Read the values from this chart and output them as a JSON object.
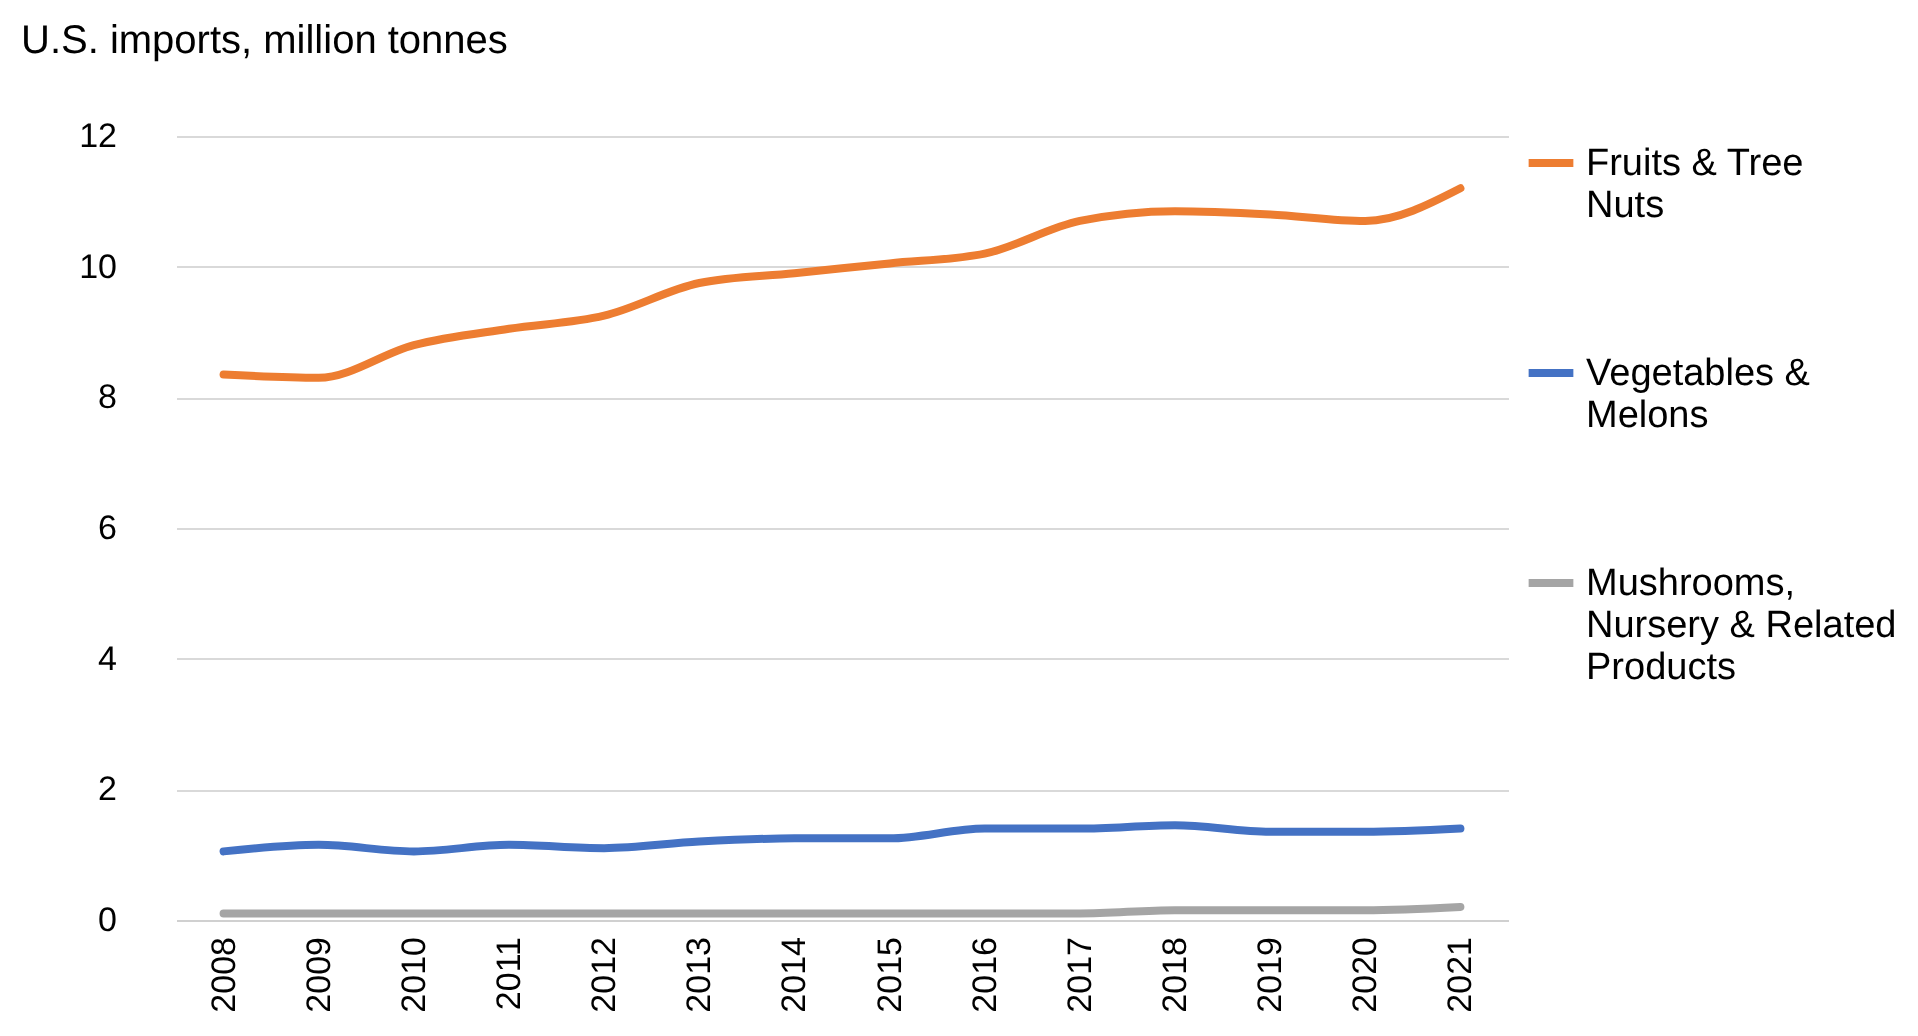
{
  "chart_data": {
    "type": "line",
    "ylabel": "U.S. imports, million tonnes",
    "categories": [
      "2008",
      "2009",
      "2010",
      "2011",
      "2012",
      "2013",
      "2014",
      "2015",
      "2016",
      "2017",
      "2018",
      "2019",
      "2020",
      "2021"
    ],
    "series": [
      {
        "name": "Fruits & Tree Nuts",
        "color": "#ed7d31",
        "values": [
          8.35,
          8.3,
          8.8,
          9.05,
          9.25,
          9.75,
          9.9,
          10.05,
          10.2,
          10.7,
          10.85,
          10.8,
          10.7,
          11.2
        ]
      },
      {
        "name": "Vegetables & Melons",
        "color": "#4472c4",
        "values": [
          1.05,
          1.15,
          1.05,
          1.15,
          1.1,
          1.2,
          1.25,
          1.25,
          1.4,
          1.4,
          1.45,
          1.35,
          1.35,
          1.4
        ]
      },
      {
        "name": "Mushrooms, Nursery & Related Products",
        "color": "#a5a5a5",
        "values": [
          0.1,
          0.1,
          0.1,
          0.1,
          0.1,
          0.1,
          0.1,
          0.1,
          0.1,
          0.1,
          0.15,
          0.15,
          0.15,
          0.2
        ]
      }
    ],
    "ylim": [
      0,
      12
    ],
    "yticks": [
      0,
      2,
      4,
      6,
      8,
      10,
      12
    ],
    "grid": "y",
    "legend": "right"
  }
}
